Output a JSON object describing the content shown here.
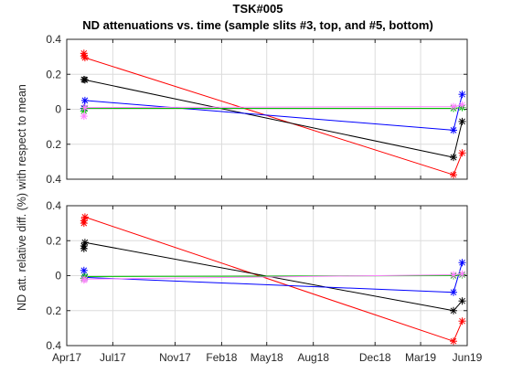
{
  "figure": {
    "title_line1": "TSK#005",
    "title_line2": "ND attenuations vs. time (sample slits #3, top, and #5, bottom)",
    "ylabel": "ND att. relative diff. (%) with respect to mean"
  },
  "colors": {
    "axis": "#262626",
    "grid": "#dcdcdc",
    "series": [
      "#ff0000",
      "#000000",
      "#0000ff",
      "#00c000",
      "#ff80ff"
    ]
  },
  "chart_data": [
    {
      "type": "line",
      "name": "top",
      "x_tick_labels": [
        "Apr17",
        "Jul17",
        "Nov17",
        "Feb18",
        "May18",
        "Aug18",
        "Dec18",
        "Mar19",
        "Jun19"
      ],
      "xlim": [
        "2017-04-01",
        "2019-06-01"
      ],
      "ylim": [
        -0.4,
        0.4
      ],
      "y_ticks": [
        -0.4,
        -0.2,
        0,
        0.2,
        0.4
      ],
      "y_tick_labels": [
        "0.4",
        "0.2",
        "0",
        "0.2",
        "0.4"
      ],
      "grid": true,
      "series": [
        {
          "color": "#ff0000",
          "points": [
            [
              "2017-05-05",
              0.32
            ],
            [
              "2017-05-05",
              0.305
            ],
            [
              "2017-05-07",
              0.295
            ],
            [
              "2019-05-05",
              -0.375
            ],
            [
              "2019-05-22",
              -0.25
            ]
          ]
        },
        {
          "color": "#000000",
          "points": [
            [
              "2017-05-05",
              0.17
            ],
            [
              "2017-05-07",
              0.168
            ],
            [
              "2019-05-05",
              -0.275
            ],
            [
              "2019-05-22",
              -0.07
            ]
          ]
        },
        {
          "color": "#0000ff",
          "points": [
            [
              "2017-05-05",
              0.005
            ],
            [
              "2017-05-07",
              0.05
            ],
            [
              "2019-05-05",
              -0.12
            ],
            [
              "2019-05-22",
              0.085
            ]
          ]
        },
        {
          "color": "#00c000",
          "points": [
            [
              "2017-05-05",
              -0.01
            ],
            [
              "2017-05-07",
              0.005
            ],
            [
              "2019-05-05",
              0.005
            ],
            [
              "2019-05-22",
              0.01
            ]
          ]
        },
        {
          "color": "#ff80ff",
          "points": [
            [
              "2017-05-05",
              -0.04
            ],
            [
              "2017-05-07",
              0.01
            ],
            [
              "2019-05-05",
              0.015
            ],
            [
              "2019-05-22",
              0.025
            ]
          ]
        }
      ]
    },
    {
      "type": "line",
      "name": "bottom",
      "x_tick_labels": [
        "Apr17",
        "Jul17",
        "Nov17",
        "Feb18",
        "May18",
        "Aug18",
        "Dec18",
        "Mar19",
        "Jun19"
      ],
      "xlim": [
        "2017-04-01",
        "2019-06-01"
      ],
      "ylim": [
        -0.4,
        0.4
      ],
      "y_ticks": [
        -0.4,
        -0.2,
        0,
        0.2,
        0.4
      ],
      "y_tick_labels": [
        "0.4",
        "0.2",
        "0",
        "0.2",
        "0.4"
      ],
      "grid": true,
      "series": [
        {
          "color": "#ff0000",
          "points": [
            [
              "2017-05-05",
              0.3
            ],
            [
              "2017-05-05",
              0.315
            ],
            [
              "2017-05-07",
              0.335
            ],
            [
              "2019-05-05",
              -0.375
            ],
            [
              "2019-05-22",
              -0.26
            ]
          ]
        },
        {
          "color": "#000000",
          "points": [
            [
              "2017-05-05",
              0.155
            ],
            [
              "2017-05-05",
              0.17
            ],
            [
              "2017-05-07",
              0.19
            ],
            [
              "2019-05-05",
              -0.2
            ],
            [
              "2019-05-22",
              -0.145
            ]
          ]
        },
        {
          "color": "#0000ff",
          "points": [
            [
              "2017-05-05",
              0.03
            ],
            [
              "2017-05-07",
              -0.01
            ],
            [
              "2019-05-05",
              -0.095
            ],
            [
              "2019-05-22",
              0.075
            ]
          ]
        },
        {
          "color": "#00c000",
          "points": [
            [
              "2017-05-05",
              -0.015
            ],
            [
              "2017-05-07",
              -0.005
            ],
            [
              "2019-05-05",
              0.0
            ],
            [
              "2019-05-22",
              0.005
            ]
          ]
        },
        {
          "color": "#ff80ff",
          "points": [
            [
              "2017-05-05",
              -0.025
            ],
            [
              "2017-05-07",
              -0.02
            ],
            [
              "2019-05-05",
              0.005
            ],
            [
              "2019-05-22",
              0.01
            ]
          ]
        }
      ]
    }
  ]
}
